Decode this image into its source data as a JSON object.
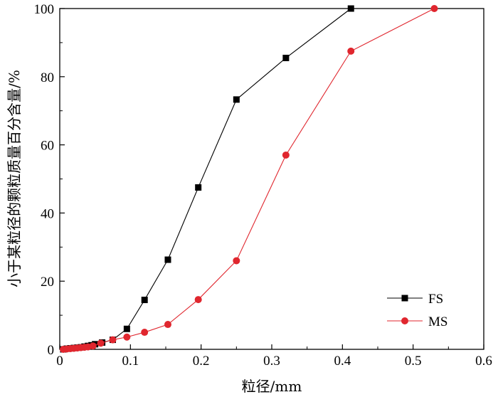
{
  "chart_data": {
    "type": "line",
    "title": "",
    "xlabel": "粒径/mm",
    "ylabel": "小于某粒径的颗粒质量百分含量/%",
    "xlim": [
      0,
      0.6
    ],
    "ylim": [
      0,
      100
    ],
    "xticks": [
      "0",
      "0.1",
      "0.2",
      "0.3",
      "0.4",
      "0.5",
      "0.6"
    ],
    "yticks": [
      "0",
      "20",
      "40",
      "60",
      "80",
      "100"
    ],
    "grid": false,
    "legend_position": "bottom-right",
    "series": [
      {
        "name": "FS",
        "color": "#000000",
        "marker": "square",
        "x": [
          0.005,
          0.01,
          0.015,
          0.02,
          0.025,
          0.03,
          0.035,
          0.04,
          0.045,
          0.05,
          0.06,
          0.075,
          0.095,
          0.12,
          0.153,
          0.196,
          0.25,
          0.32,
          0.412
        ],
        "y": [
          0,
          0.2,
          0.3,
          0.4,
          0.5,
          0.6,
          0.8,
          1.0,
          1.2,
          1.5,
          2.0,
          2.8,
          6.0,
          14.5,
          26.3,
          47.5,
          73.3,
          85.5,
          100
        ]
      },
      {
        "name": "MS",
        "color": "#e0262e",
        "marker": "circle",
        "x": [
          0.005,
          0.01,
          0.015,
          0.02,
          0.025,
          0.03,
          0.035,
          0.04,
          0.047,
          0.058,
          0.075,
          0.095,
          0.12,
          0.153,
          0.196,
          0.25,
          0.32,
          0.412,
          0.53
        ],
        "y": [
          0,
          0.1,
          0.2,
          0.3,
          0.4,
          0.5,
          0.6,
          0.7,
          1.0,
          1.8,
          2.8,
          3.6,
          5.0,
          7.3,
          14.6,
          26.0,
          57.0,
          87.5,
          100
        ]
      }
    ]
  }
}
